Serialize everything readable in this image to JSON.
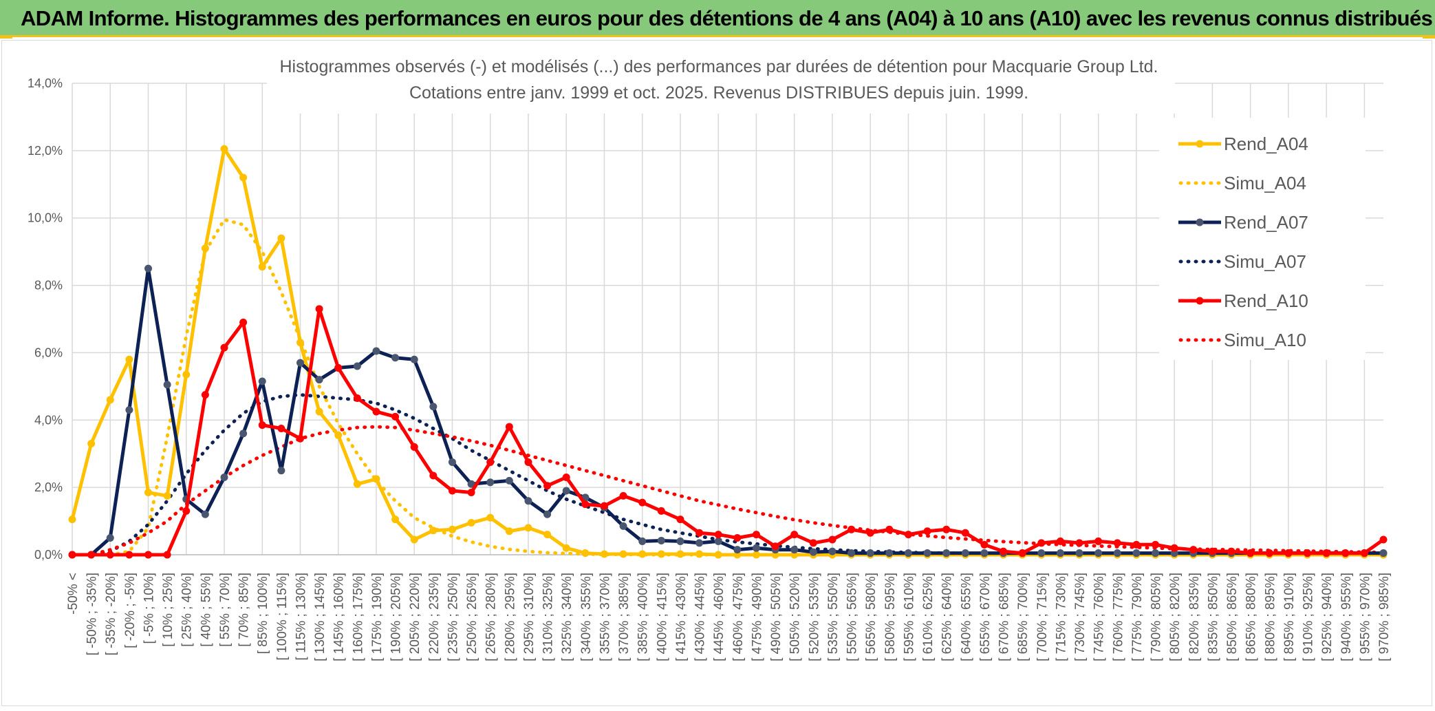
{
  "header": {
    "title": "ADAM Informe. Histogrammes des performances en euros pour des détentions de 4 ans (A04) à 10 ans (A10) avec les revenus connus distribués"
  },
  "colors": {
    "banner": "#86c97a",
    "accent": "#f0c21a",
    "A04": "#ffc000",
    "A07": "#0d2155",
    "A10": "#ff0000"
  },
  "chart_data": {
    "type": "line",
    "title": "Histogrammes observés (-) et modélisés (...) des performances par durées de détention pour Macquarie Group Ltd.",
    "subtitle": "Cotations entre janv. 1999 et oct. 2025. Revenus DISTRIBUES depuis juin. 1999.",
    "xlabel": "",
    "ylabel": "",
    "ylim": [
      0,
      14
    ],
    "y_ticks": [
      "0,0%",
      "2,0%",
      "4,0%",
      "6,0%",
      "8,0%",
      "10,0%",
      "12,0%",
      "14,0%"
    ],
    "grid": true,
    "legend_position": "right",
    "categories": [
      "-50% <",
      "[ -50% ; -35%]",
      "[ -35% ; -20%]",
      "[ -20% ; -5%]",
      "[ -5% ; 10%]",
      "[ 10% ; 25%]",
      "[ 25% ; 40%]",
      "[ 40% ; 55%]",
      "[ 55% ; 70%]",
      "[ 70% ; 85%]",
      "[ 85% ; 100%]",
      "[ 100% ; 115%]",
      "[ 115% ; 130%]",
      "[ 130% ; 145%]",
      "[ 145% ; 160%]",
      "[ 160% ; 175%]",
      "[ 175% ; 190%]",
      "[ 190% ; 205%]",
      "[ 205% ; 220%]",
      "[ 220% ; 235%]",
      "[ 235% ; 250%]",
      "[ 250% ; 265%]",
      "[ 265% ; 280%]",
      "[ 280% ; 295%]",
      "[ 295% ; 310%]",
      "[ 310% ; 325%]",
      "[ 325% ; 340%]",
      "[ 340% ; 355%]",
      "[ 355% ; 370%]",
      "[ 370% ; 385%]",
      "[ 385% ; 400%]",
      "[ 400% ; 415%]",
      "[ 415% ; 430%]",
      "[ 430% ; 445%]",
      "[ 445% ; 460%]",
      "[ 460% ; 475%]",
      "[ 475% ; 490%]",
      "[ 490% ; 505%]",
      "[ 505% ; 520%]",
      "[ 520% ; 535%]",
      "[ 535% ; 550%]",
      "[ 550% ; 565%]",
      "[ 565% ; 580%]",
      "[ 580% ; 595%]",
      "[ 595% ; 610%]",
      "[ 610% ; 625%]",
      "[ 625% ; 640%]",
      "[ 640% ; 655%]",
      "[ 655% ; 670%]",
      "[ 670% ; 685%]",
      "[ 685% ; 700%]",
      "[ 700% ; 715%]",
      "[ 715% ; 730%]",
      "[ 730% ; 745%]",
      "[ 745% ; 760%]",
      "[ 760% ; 775%]",
      "[ 775% ; 790%]",
      "[ 790% ; 805%]",
      "[ 805% ; 820%]",
      "[ 820% ; 835%]",
      "[ 835% ; 850%]",
      "[ 850% ; 865%]",
      "[ 865% ; 880%]",
      "[ 880% ; 895%]",
      "[ 895% ; 910%]",
      "[ 910% ; 925%]",
      "[ 925% ; 940%]",
      "[ 940% ; 955%]",
      "[ 955% ; 970%]",
      "[ 970% ; 985%]"
    ],
    "series": [
      {
        "name": "Rend_A04",
        "style": "solid",
        "color": "#ffc000",
        "values": [
          1.05,
          3.3,
          4.6,
          5.8,
          1.85,
          1.75,
          5.35,
          9.1,
          12.05,
          11.2,
          8.55,
          9.4,
          6.3,
          4.25,
          3.55,
          2.1,
          2.25,
          1.05,
          0.45,
          0.72,
          0.75,
          0.95,
          1.1,
          0.7,
          0.8,
          0.6,
          0.2,
          0.05,
          0.02,
          0.02,
          0.02,
          0.02,
          0.02,
          0.02,
          0,
          0,
          0,
          0,
          0,
          0,
          0,
          0,
          0,
          0,
          0,
          0,
          0,
          0,
          0,
          0,
          0,
          0,
          0,
          0,
          0,
          0,
          0,
          0,
          0,
          0,
          0,
          0,
          0,
          0,
          0,
          0,
          0,
          0,
          0,
          0
        ]
      },
      {
        "name": "Simu_A04",
        "style": "dotted",
        "color": "#ffc000",
        "values": [
          0,
          0,
          0,
          0.1,
          0.8,
          3.5,
          6.5,
          9.0,
          9.95,
          9.8,
          9.0,
          7.8,
          6.4,
          5.0,
          3.9,
          3.0,
          2.2,
          1.6,
          1.1,
          0.8,
          0.55,
          0.38,
          0.25,
          0.16,
          0.1,
          0.06,
          0.04,
          0.02,
          0.01,
          0.01,
          0,
          0,
          0,
          0,
          0,
          0,
          0,
          0,
          0,
          0,
          0,
          0,
          0,
          0,
          0,
          0,
          0,
          0,
          0,
          0,
          0,
          0,
          0,
          0,
          0,
          0,
          0,
          0,
          0,
          0,
          0,
          0,
          0,
          0,
          0,
          0,
          0,
          0,
          0,
          0
        ]
      },
      {
        "name": "Rend_A07",
        "style": "solid",
        "color": "#0d2155",
        "values": [
          0,
          0,
          0.5,
          4.3,
          8.5,
          5.05,
          1.65,
          1.2,
          2.3,
          3.6,
          5.15,
          2.5,
          5.7,
          5.2,
          5.55,
          5.6,
          6.05,
          5.85,
          5.8,
          4.4,
          2.75,
          2.1,
          2.15,
          2.2,
          1.6,
          1.2,
          1.9,
          1.7,
          1.4,
          0.85,
          0.4,
          0.42,
          0.4,
          0.35,
          0.4,
          0.15,
          0.2,
          0.15,
          0.15,
          0.08,
          0.1,
          0.05,
          0.05,
          0.05,
          0.05,
          0.05,
          0.05,
          0.05,
          0.05,
          0.05,
          0.05,
          0.05,
          0.05,
          0.05,
          0.05,
          0.05,
          0.05,
          0.05,
          0.05,
          0.05,
          0.05,
          0.05,
          0.05,
          0.05,
          0.05,
          0.05,
          0.05,
          0.05,
          0.05,
          0.05
        ]
      },
      {
        "name": "Simu_A07",
        "style": "dotted",
        "color": "#0d2155",
        "values": [
          0,
          0,
          0.1,
          0.4,
          0.9,
          1.6,
          2.4,
          3.1,
          3.7,
          4.2,
          4.55,
          4.7,
          4.75,
          4.7,
          4.65,
          4.6,
          4.5,
          4.3,
          4.05,
          3.75,
          3.45,
          3.1,
          2.8,
          2.5,
          2.2,
          1.9,
          1.65,
          1.45,
          1.25,
          1.05,
          0.9,
          0.75,
          0.65,
          0.55,
          0.45,
          0.38,
          0.32,
          0.27,
          0.22,
          0.18,
          0.15,
          0.12,
          0.1,
          0.08,
          0.07,
          0.06,
          0.05,
          0.04,
          0.03,
          0.03,
          0.02,
          0.02,
          0.02,
          0.01,
          0.01,
          0.01,
          0.01,
          0.01,
          0,
          0,
          0,
          0,
          0,
          0,
          0,
          0,
          0,
          0,
          0,
          0
        ]
      },
      {
        "name": "Rend_A10",
        "style": "solid",
        "color": "#ff0000",
        "values": [
          0,
          0,
          0,
          0,
          0,
          0,
          1.3,
          4.75,
          6.15,
          6.9,
          3.85,
          3.75,
          3.45,
          7.3,
          5.55,
          4.65,
          4.25,
          4.1,
          3.2,
          2.35,
          1.9,
          1.85,
          2.75,
          3.8,
          2.75,
          2.05,
          2.3,
          1.5,
          1.45,
          1.75,
          1.55,
          1.3,
          1.05,
          0.65,
          0.6,
          0.5,
          0.6,
          0.25,
          0.6,
          0.35,
          0.45,
          0.75,
          0.65,
          0.75,
          0.6,
          0.7,
          0.75,
          0.65,
          0.3,
          0.1,
          0.05,
          0.35,
          0.4,
          0.35,
          0.4,
          0.35,
          0.3,
          0.3,
          0.2,
          0.15,
          0.1,
          0.1,
          0.05,
          0.05,
          0.05,
          0.05,
          0.05,
          0.05,
          0.05,
          0.45
        ]
      },
      {
        "name": "Simu_A10",
        "style": "dotted",
        "color": "#ff0000",
        "values": [
          0,
          0,
          0.15,
          0.35,
          0.65,
          1.0,
          1.5,
          1.9,
          2.3,
          2.65,
          2.95,
          3.2,
          3.45,
          3.6,
          3.7,
          3.78,
          3.8,
          3.78,
          3.7,
          3.6,
          3.5,
          3.38,
          3.25,
          3.1,
          2.95,
          2.8,
          2.65,
          2.5,
          2.35,
          2.2,
          2.05,
          1.9,
          1.75,
          1.6,
          1.48,
          1.36,
          1.25,
          1.14,
          1.04,
          0.95,
          0.87,
          0.8,
          0.73,
          0.67,
          0.61,
          0.56,
          0.51,
          0.47,
          0.43,
          0.39,
          0.36,
          0.33,
          0.3,
          0.28,
          0.26,
          0.24,
          0.22,
          0.2,
          0.18,
          0.17,
          0.16,
          0.15,
          0.14,
          0.13,
          0.12,
          0.11,
          0.1,
          0.09,
          0.08,
          0.07
        ]
      }
    ]
  }
}
